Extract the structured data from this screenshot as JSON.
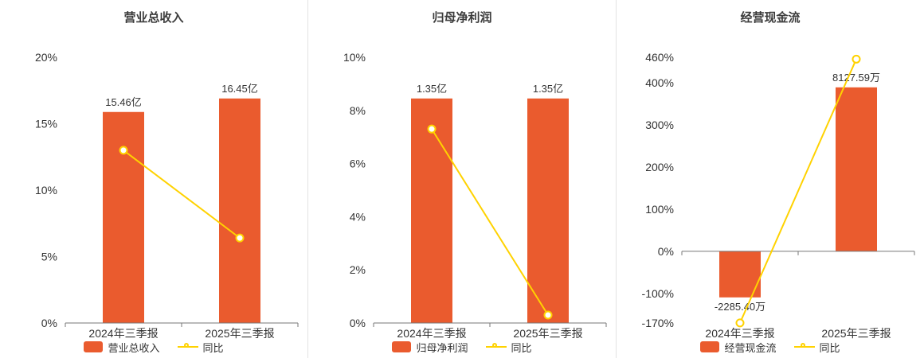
{
  "colors": {
    "bar": "#ea5b2e",
    "line": "#ffd200",
    "title": "#3c3c3c",
    "axis_text": "#333333",
    "axis_line": "#777777",
    "label_text": "#333333",
    "separator": "#e4e4e4",
    "background": "#ffffff"
  },
  "chart_data": [
    {
      "type": "bar",
      "title": "营业总收入",
      "categories": [
        "2024年三季报",
        "2025年三季报"
      ],
      "bar_series": {
        "name": "营业总收入",
        "values": [
          15.46,
          16.45
        ],
        "unit": "亿",
        "labels": [
          "15.46亿",
          "16.45亿"
        ]
      },
      "line_series": {
        "name": "同比",
        "values_pct": [
          13.0,
          6.4
        ]
      },
      "y_axis": {
        "min": 0,
        "max": 20,
        "ticks": [
          20,
          15,
          10,
          5,
          0
        ],
        "format": "percent"
      },
      "grid": false,
      "legend_position": "bottom"
    },
    {
      "type": "bar",
      "title": "归母净利润",
      "categories": [
        "2024年三季报",
        "2025年三季报"
      ],
      "bar_series": {
        "name": "归母净利润",
        "values": [
          1.35,
          1.35
        ],
        "unit": "亿",
        "labels": [
          "1.35亿",
          "1.35亿"
        ]
      },
      "line_series": {
        "name": "同比",
        "values_pct": [
          7.3,
          0.3
        ]
      },
      "y_axis": {
        "min": 0,
        "max": 10,
        "ticks": [
          10,
          8,
          6,
          4,
          2,
          0
        ],
        "format": "percent"
      },
      "grid": false,
      "legend_position": "bottom"
    },
    {
      "type": "bar",
      "title": "经营现金流",
      "categories": [
        "2024年三季报",
        "2025年三季报"
      ],
      "bar_series": {
        "name": "经营现金流",
        "values": [
          -2285.4,
          8127.59
        ],
        "unit": "万",
        "labels": [
          "-2285.40万",
          "8127.59万"
        ]
      },
      "line_series": {
        "name": "同比",
        "values_pct": [
          -169.8,
          455.6
        ]
      },
      "y_axis": {
        "min": -170,
        "max": 460,
        "ticks": [
          460,
          400,
          300,
          200,
          100,
          0,
          -100,
          -170
        ],
        "format": "percent"
      },
      "grid": false,
      "legend_position": "bottom"
    }
  ]
}
